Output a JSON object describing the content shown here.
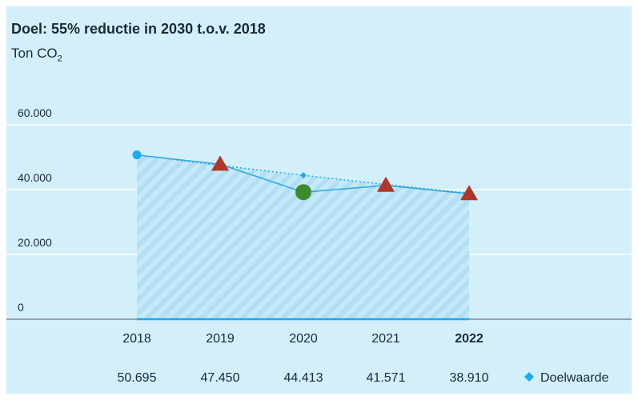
{
  "chart_data": {
    "type": "line",
    "title": "Doel: 55% reductie in 2030 t.o.v. 2018",
    "unit_prefix": "Ton CO",
    "unit_sub": "2",
    "categories": [
      "2018",
      "2019",
      "2020",
      "2021",
      "2022"
    ],
    "highlight_category": "2022",
    "y_ticks": [
      "0",
      "20.000",
      "40.000",
      "60.000"
    ],
    "ylim": [
      0,
      60000
    ],
    "grid": true,
    "series": [
      {
        "name": "Doelwaarde",
        "values": [
          50695,
          47450,
          44413,
          41571,
          38910
        ],
        "value_labels": [
          "50.695",
          "47.450",
          "44.413",
          "41.571",
          "38.910"
        ],
        "color": "#1eaaf1",
        "style": "dotted"
      },
      {
        "values": [
          50695,
          47800,
          39200,
          41300,
          38700
        ],
        "color": "#2aa8e0",
        "style": "solid",
        "markers": [
          "circle",
          "triangle",
          "big-circle",
          "triangle",
          "triangle"
        ],
        "marker_colors": [
          "#1eaaf1",
          "#b0352b",
          "#3c8c2e",
          "#b0352b",
          "#b0352b"
        ]
      }
    ],
    "legend": "bottom-right",
    "colors": {
      "background": "#d3effa",
      "grid": "#ffffff",
      "area": "#b6e2f5",
      "axis": "#1eaaf1"
    }
  }
}
